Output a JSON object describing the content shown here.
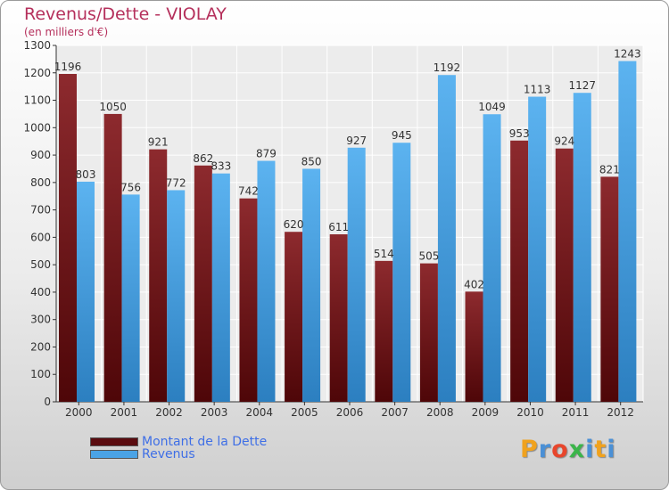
{
  "header": {
    "title": "Revenus/Dette - VIOLAY",
    "subtitle": "(en milliers d'€)"
  },
  "legend": {
    "items": [
      {
        "label": "Montant de la Dette",
        "color": "#7a1e22"
      },
      {
        "label": "Revenus",
        "color": "#4aa3e6"
      }
    ]
  },
  "brand": {
    "letters": [
      "P",
      "r",
      "o",
      "x",
      "i",
      "t",
      "i"
    ],
    "colors": [
      "#f0a21e",
      "#4a90d6",
      "#e8462c",
      "#3bb54a",
      "#4a90d6",
      "#f0a21e",
      "#4a90d6"
    ]
  },
  "chart_data": {
    "type": "bar",
    "title": "Revenus/Dette - VIOLAY",
    "subtitle": "(en milliers d'€)",
    "categories": [
      "2000",
      "2001",
      "2002",
      "2003",
      "2004",
      "2005",
      "2006",
      "2007",
      "2008",
      "2009",
      "2010",
      "2011",
      "2012"
    ],
    "series": [
      {
        "name": "Montant de la Dette",
        "color": "#7a1e22",
        "values": [
          1196,
          1050,
          921,
          862,
          742,
          620,
          611,
          514,
          505,
          402,
          953,
          924,
          821
        ]
      },
      {
        "name": "Revenus",
        "color": "#4aa3e6",
        "values": [
          803,
          756,
          772,
          833,
          879,
          850,
          927,
          945,
          1192,
          1049,
          1113,
          1127,
          1243
        ]
      }
    ],
    "ylim": [
      0,
      1300
    ],
    "yticks": [
      0,
      100,
      200,
      300,
      400,
      500,
      600,
      700,
      800,
      900,
      1000,
      1100,
      1200,
      1300
    ],
    "grid": true,
    "legend_position": "bottom-left"
  }
}
